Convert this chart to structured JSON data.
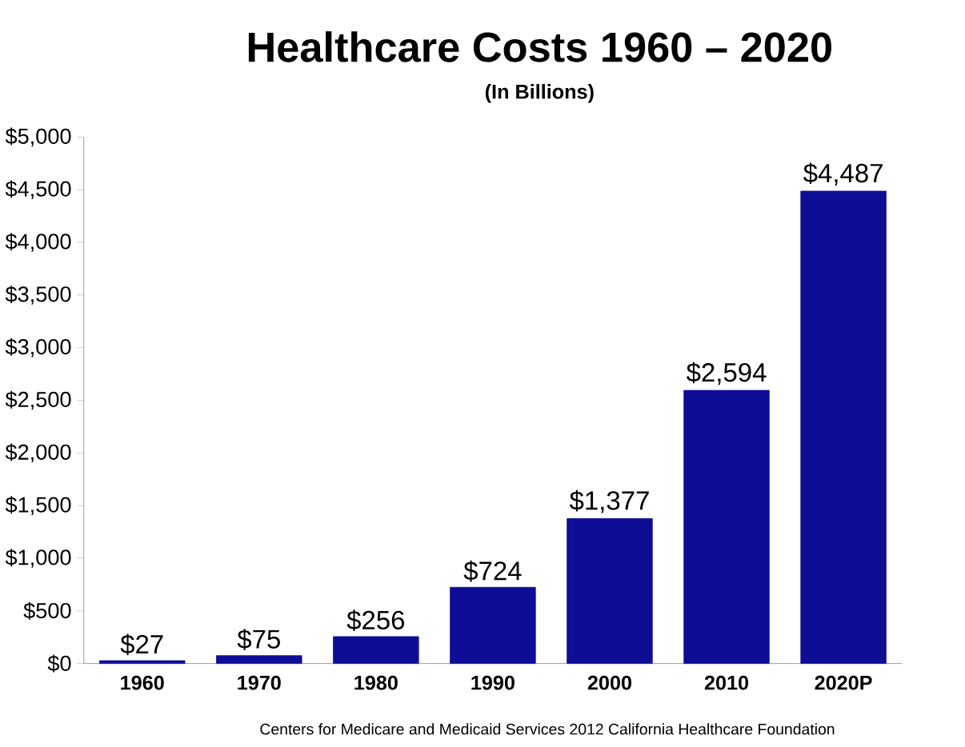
{
  "chart_data": {
    "type": "bar",
    "title": "Healthcare Costs 1960 – 2020",
    "subtitle": "(In Billions)",
    "categories": [
      "1960",
      "1970",
      "1980",
      "1990",
      "2000",
      "2010",
      "2020P"
    ],
    "values": [
      27,
      75,
      256,
      724,
      1377,
      2594,
      4487
    ],
    "value_labels": [
      "$27",
      "$75",
      "$256",
      "$724",
      "$1,377",
      "$2,594",
      "$4,487"
    ],
    "color": "#0d0d96",
    "ylim": [
      0,
      5000
    ],
    "yticks": [
      {
        "value": 0,
        "label": "$0"
      },
      {
        "value": 500,
        "label": "$500"
      },
      {
        "value": 1000,
        "label": "$1,000"
      },
      {
        "value": 1500,
        "label": "$1,500"
      },
      {
        "value": 2000,
        "label": "$2,000"
      },
      {
        "value": 2500,
        "label": "$2,500"
      },
      {
        "value": 3000,
        "label": "$3,000"
      },
      {
        "value": 3500,
        "label": "$3,500"
      },
      {
        "value": 4000,
        "label": "$4,000"
      },
      {
        "value": 4500,
        "label": "$4,500"
      },
      {
        "value": 5000,
        "label": "$5,000"
      }
    ],
    "annotations": [
      "Centers for Medicare and Medicaid Services 2012 California Healthcare Foundation"
    ]
  }
}
